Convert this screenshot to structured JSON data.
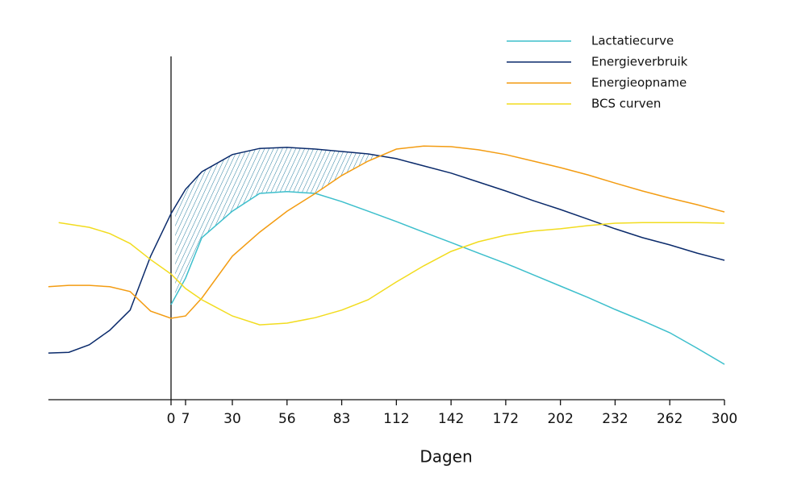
{
  "chart_data": {
    "type": "line",
    "xlabel": "Dagen",
    "xlim": [
      -60,
      300
    ],
    "xticks": [
      0,
      7,
      30,
      56,
      83,
      112,
      142,
      172,
      202,
      232,
      262,
      300
    ],
    "ylim": [
      0,
      100
    ],
    "legend": "upper right",
    "series": [
      {
        "name": "Lactatiecurve",
        "color": "#3dbfcc",
        "x": [
          0,
          7,
          15,
          30,
          43,
          56,
          70,
          83,
          97,
          112,
          127,
          142,
          157,
          172,
          187,
          202,
          217,
          232,
          247,
          262,
          281,
          300
        ],
        "values": [
          27.7,
          35.4,
          47.2,
          54.9,
          60.1,
          60.6,
          60.1,
          57.7,
          54.9,
          51.9,
          48.8,
          45.8,
          42.7,
          39.7,
          36.4,
          33.1,
          29.8,
          26.3,
          23,
          19.5,
          15,
          10.3
        ]
      },
      {
        "name": "Energieverbruik",
        "color": "#0a2a6b",
        "x": [
          -60,
          -50,
          -40,
          -30,
          -20,
          -10,
          0,
          7,
          15,
          30,
          43,
          56,
          70,
          83,
          97,
          112,
          127,
          142,
          157,
          172,
          187,
          202,
          217,
          232,
          247,
          262,
          281,
          300
        ],
        "values": [
          13.6,
          13.8,
          16,
          20.2,
          26.1,
          41.8,
          54.2,
          61.3,
          66.4,
          71.4,
          73.2,
          73.5,
          73,
          72.3,
          71.6,
          70.2,
          68.1,
          66,
          63.4,
          60.8,
          58,
          55.4,
          52.6,
          49.8,
          47.2,
          45.1,
          42.7,
          40.6
        ]
      },
      {
        "name": "Energieopname",
        "color": "#f39c12",
        "x": [
          -60,
          -50,
          -40,
          -30,
          -20,
          -10,
          0,
          7,
          15,
          30,
          43,
          56,
          70,
          83,
          97,
          112,
          127,
          142,
          157,
          172,
          187,
          202,
          217,
          232,
          247,
          262,
          281,
          300
        ],
        "values": [
          32.9,
          33.3,
          33.3,
          32.9,
          31.5,
          25.8,
          23.7,
          24.4,
          29.6,
          41.8,
          48.8,
          54.9,
          60.1,
          65.3,
          69.5,
          73,
          73.9,
          73.7,
          72.8,
          71.4,
          69.5,
          67.6,
          65.5,
          63.1,
          60.8,
          58.7,
          56.8,
          54.7
        ]
      },
      {
        "name": "BCS curven",
        "color": "#f2dc1f",
        "x": [
          -55,
          -40,
          -30,
          -20,
          -10,
          0,
          7,
          15,
          30,
          43,
          56,
          70,
          83,
          97,
          112,
          127,
          142,
          157,
          172,
          187,
          202,
          217,
          232,
          247,
          262,
          281,
          300
        ],
        "values": [
          51.6,
          50.2,
          48.4,
          45.5,
          40.8,
          36.6,
          32.4,
          29.1,
          24.4,
          21.8,
          22.3,
          23.9,
          26.1,
          29.1,
          34.3,
          39,
          43.2,
          46,
          47.9,
          49.1,
          49.8,
          50.7,
          51.4,
          51.6,
          51.6,
          51.6,
          51.4
        ]
      }
    ]
  }
}
